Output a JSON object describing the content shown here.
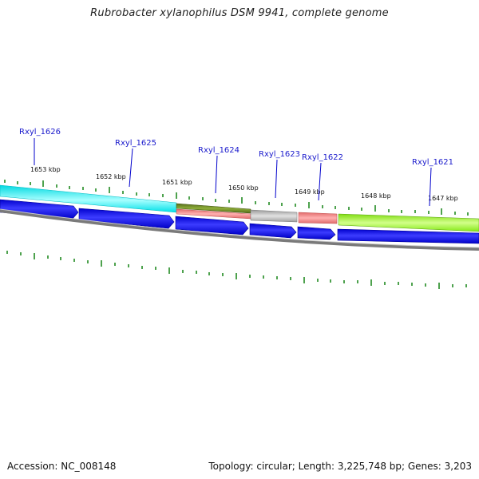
{
  "title": "Rubrobacter xylanophilus DSM 9941, complete genome",
  "footer": {
    "accession": "Accession: NC_008148",
    "topology": "Topology: circular; Length: 3,225,748 bp; Genes: 3,203"
  },
  "colors": {
    "cds_blue": "#0000ee",
    "cyan_feature": "#00e5ee",
    "olive_feature": "#6b8e23",
    "pink_feature": "#f08080",
    "gray_feature": "#bbbbbb",
    "lime_feature": "#9aff20",
    "tick_green": "#228b22",
    "label_blue": "#1a1acc",
    "backbone_gray": "#888888"
  },
  "scale": {
    "unit": "kbp",
    "labels": [
      "1653 kbp",
      "1652 kbp",
      "1651 kbp",
      "1650 kbp",
      "1649 kbp",
      "1648 kbp",
      "1647 kbp"
    ]
  },
  "genes": [
    {
      "id": "Rxyl_1626"
    },
    {
      "id": "Rxyl_1625"
    },
    {
      "id": "Rxyl_1624"
    },
    {
      "id": "Rxyl_1623"
    },
    {
      "id": "Rxyl_1622"
    },
    {
      "id": "Rxyl_1621"
    }
  ]
}
